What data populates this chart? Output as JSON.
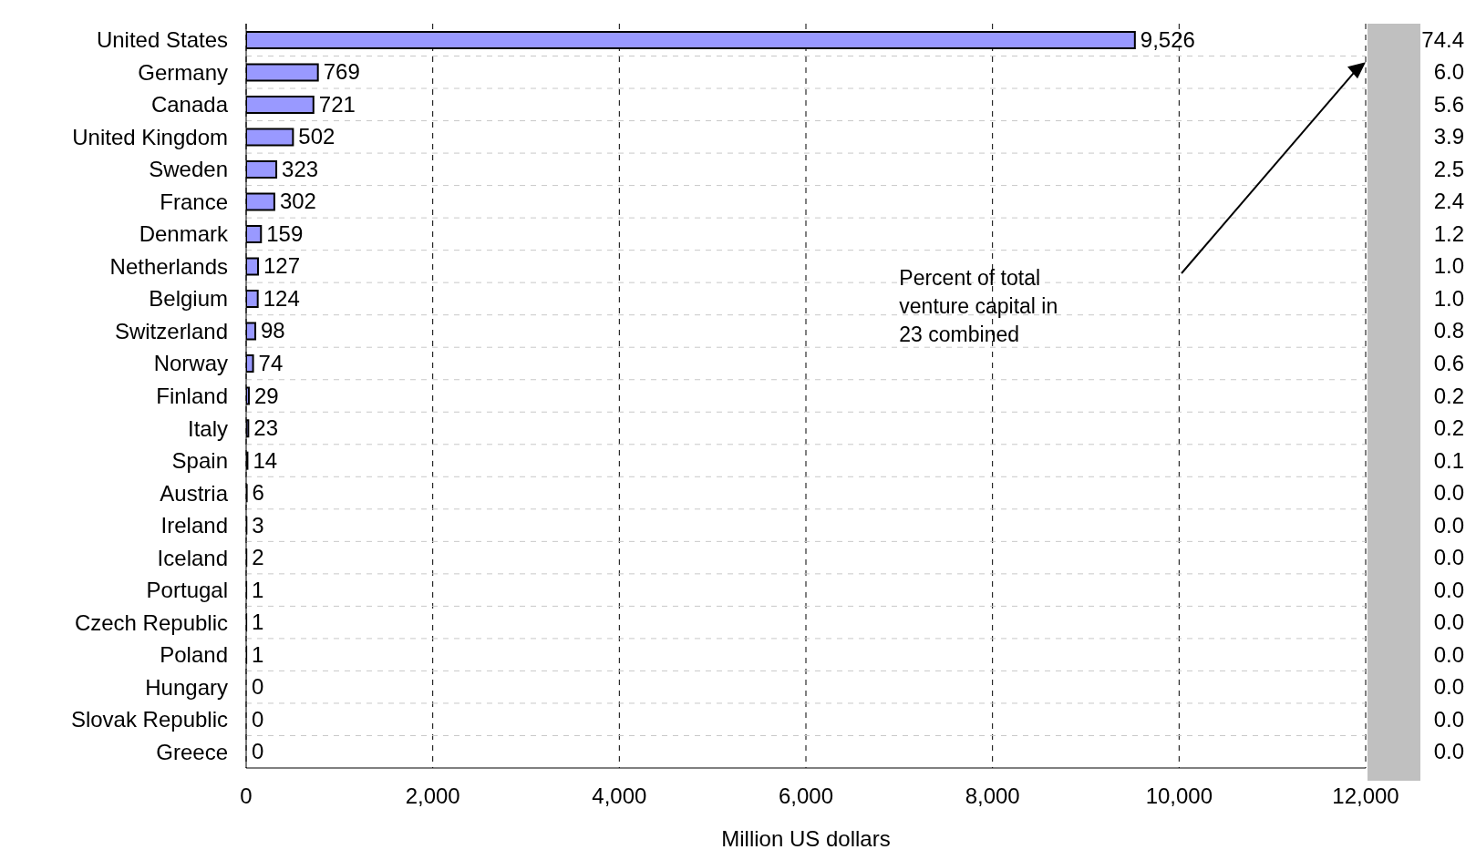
{
  "chart_data": {
    "type": "bar",
    "orientation": "horizontal",
    "xlabel": "Million US dollars",
    "categories": [
      "United States",
      "Germany",
      "Canada",
      "United Kingdom",
      "Sweden",
      "France",
      "Denmark",
      "Netherlands",
      "Belgium",
      "Switzerland",
      "Norway",
      "Finland",
      "Italy",
      "Spain",
      "Austria",
      "Ireland",
      "Iceland",
      "Portugal",
      "Czech Republic",
      "Poland",
      "Hungary",
      "Slovak Republic",
      "Greece"
    ],
    "values": [
      9526,
      769,
      721,
      502,
      323,
      302,
      159,
      127,
      124,
      98,
      74,
      29,
      23,
      14,
      6,
      3,
      2,
      1,
      1,
      1,
      0,
      0,
      0
    ],
    "color": "#9999ff",
    "value_labels": [
      "9,526",
      "769",
      "721",
      "502",
      "323",
      "302",
      "159",
      "127",
      "124",
      "98",
      "74",
      "29",
      "23",
      "14",
      "6",
      "3",
      "2",
      "1",
      "1",
      "1",
      "0",
      "0",
      "0"
    ],
    "xlim": [
      0,
      12000
    ],
    "xticks": [
      0,
      {
        "value": 2000,
        "label": "2,000"
      },
      {
        "value": 4000,
        "label": "4,000"
      },
      {
        "value": 6000,
        "label": "6,000"
      },
      {
        "value": 8000,
        "label": "8,000"
      },
      {
        "value": 10000,
        "label": "10,000"
      },
      {
        "value": 12000,
        "label": "12,000"
      }
    ],
    "grid": true,
    "legend": false,
    "annotations": [
      "Percent of total venture capital in 23 combined",
      "74.4",
      "6.0",
      "5.6",
      "3.9",
      "2.5",
      "2.4",
      "1.2",
      "1.0",
      "1.0",
      "0.8",
      "0.6",
      "0.2",
      "0.2",
      "0.1",
      "0.0",
      "0.0",
      "0.0",
      "0.0",
      "0.0",
      "0.0",
      "0.0",
      "0.0",
      "0.0"
    ]
  }
}
